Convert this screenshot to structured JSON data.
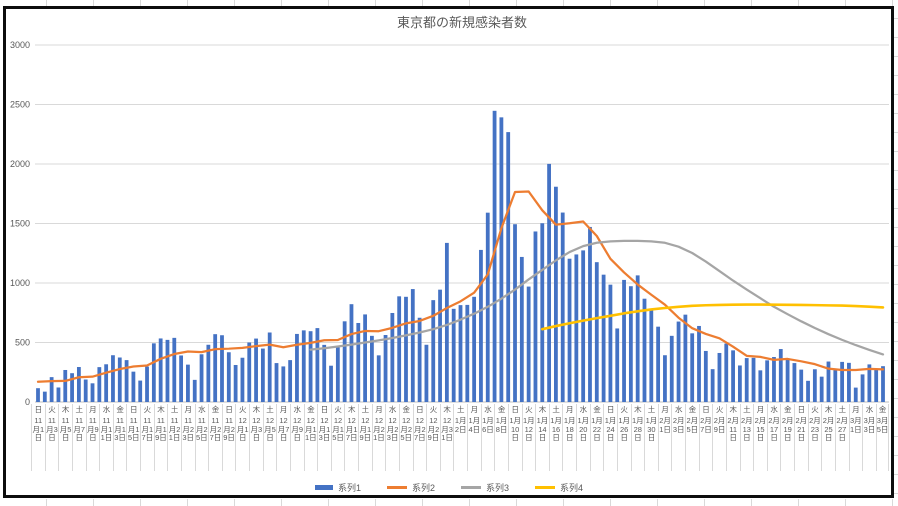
{
  "chart_data": {
    "type": "combo",
    "title": "東京都の新規感染者数",
    "xlabel": "",
    "ylabel": "",
    "ylim": [
      0,
      3000
    ],
    "yticks": [
      0,
      500,
      1000,
      1500,
      2000,
      2500,
      3000
    ],
    "grid": true,
    "legend_position": "bottom",
    "x_label_step_days": 2,
    "x_labels": [
      {
        "w": "日",
        "d": "11月1日"
      },
      {
        "w": "火",
        "d": "11月3日"
      },
      {
        "w": "木",
        "d": "11月5日"
      },
      {
        "w": "土",
        "d": "11月7日"
      },
      {
        "w": "月",
        "d": "11月9日"
      },
      {
        "w": "水",
        "d": "11月11日"
      },
      {
        "w": "金",
        "d": "11月13日"
      },
      {
        "w": "日",
        "d": "11月15日"
      },
      {
        "w": "火",
        "d": "11月17日"
      },
      {
        "w": "木",
        "d": "11月19日"
      },
      {
        "w": "土",
        "d": "11月21日"
      },
      {
        "w": "月",
        "d": "11月23日"
      },
      {
        "w": "水",
        "d": "11月25日"
      },
      {
        "w": "金",
        "d": "11月27日"
      },
      {
        "w": "日",
        "d": "11月29日"
      },
      {
        "w": "火",
        "d": "12月1日"
      },
      {
        "w": "木",
        "d": "12月3日"
      },
      {
        "w": "土",
        "d": "12月5日"
      },
      {
        "w": "月",
        "d": "12月7日"
      },
      {
        "w": "水",
        "d": "12月9日"
      },
      {
        "w": "金",
        "d": "12月11日"
      },
      {
        "w": "日",
        "d": "12月13日"
      },
      {
        "w": "火",
        "d": "12月15日"
      },
      {
        "w": "木",
        "d": "12月17日"
      },
      {
        "w": "土",
        "d": "12月19日"
      },
      {
        "w": "月",
        "d": "12月21日"
      },
      {
        "w": "水",
        "d": "12月23日"
      },
      {
        "w": "金",
        "d": "12月25日"
      },
      {
        "w": "日",
        "d": "12月27日"
      },
      {
        "w": "火",
        "d": "12月29日"
      },
      {
        "w": "木",
        "d": "12月31日"
      },
      {
        "w": "土",
        "d": "1月2日"
      },
      {
        "w": "月",
        "d": "1月4日"
      },
      {
        "w": "水",
        "d": "1月6日"
      },
      {
        "w": "金",
        "d": "1月8日"
      },
      {
        "w": "日",
        "d": "1月10日"
      },
      {
        "w": "火",
        "d": "1月12日"
      },
      {
        "w": "木",
        "d": "1月14日"
      },
      {
        "w": "土",
        "d": "1月16日"
      },
      {
        "w": "月",
        "d": "1月18日"
      },
      {
        "w": "水",
        "d": "1月20日"
      },
      {
        "w": "金",
        "d": "1月22日"
      },
      {
        "w": "日",
        "d": "1月24日"
      },
      {
        "w": "火",
        "d": "1月26日"
      },
      {
        "w": "木",
        "d": "1月28日"
      },
      {
        "w": "土",
        "d": "1月30日"
      },
      {
        "w": "月",
        "d": "2月1日"
      },
      {
        "w": "水",
        "d": "2月3日"
      },
      {
        "w": "金",
        "d": "2月5日"
      },
      {
        "w": "日",
        "d": "2月7日"
      },
      {
        "w": "火",
        "d": "2月9日"
      },
      {
        "w": "木",
        "d": "2月11日"
      },
      {
        "w": "土",
        "d": "2月13日"
      },
      {
        "w": "月",
        "d": "2月15日"
      },
      {
        "w": "水",
        "d": "2月17日"
      },
      {
        "w": "金",
        "d": "2月19日"
      },
      {
        "w": "日",
        "d": "2月21日"
      },
      {
        "w": "火",
        "d": "2月23日"
      },
      {
        "w": "木",
        "d": "2月25日"
      },
      {
        "w": "土",
        "d": "2月27日"
      },
      {
        "w": "月",
        "d": "3月1日"
      },
      {
        "w": "水",
        "d": "3月3日"
      },
      {
        "w": "金",
        "d": "3月5日"
      }
    ],
    "series": [
      {
        "name": "系列1",
        "type": "bar",
        "color": "#4472C4",
        "x_step": 1,
        "values": [
          116,
          87,
          209,
          122,
          269,
          242,
          294,
          189,
          157,
          293,
          317,
          393,
          374,
          352,
          255,
          180,
          298,
          493,
          534,
          522,
          539,
          391,
          314,
          186,
          401,
          481,
          570,
          561,
          418,
          311,
          372,
          500,
          533,
          449,
          584,
          327,
          299,
          352,
          572,
          602,
          595,
          621,
          480,
          305,
          460,
          678,
          822,
          664,
          736,
          556,
          392,
          563,
          748,
          888,
          884,
          949,
          708,
          481,
          856,
          944,
          1337,
          783,
          814,
          816,
          884,
          1278,
          1591,
          2447,
          2392,
          2268,
          1494,
          1219,
          970,
          1433,
          1502,
          2001,
          1809,
          1592,
          1204,
          1240,
          1274,
          1471,
          1175,
          1070,
          986,
          618,
          1026,
          973,
          1064,
          868,
          769,
          633,
          393,
          556,
          676,
          734,
          577,
          639,
          429,
          276,
          412,
          491,
          434,
          307,
          369,
          371,
          266,
          350,
          378,
          445,
          353,
          327,
          272,
          178,
          275,
          213,
          340,
          270,
          337,
          329,
          121,
          232,
          316,
          279,
          301
        ]
      },
      {
        "name": "系列2",
        "type": "line",
        "color": "#ED7D31",
        "x_step": 2,
        "values": [
          170,
          175,
          177,
          208,
          213,
          246,
          277,
          298,
          307,
          363,
          403,
          424,
          419,
          444,
          448,
          455,
          470,
          482,
          460,
          481,
          497,
          519,
          521,
          571,
          597,
          595,
          623,
          661,
          681,
          724,
          790,
          846,
          919,
          1072,
          1460,
          1765,
          1769,
          1611,
          1490,
          1502,
          1517,
          1395,
          1203,
          1089,
          987,
          901,
          818,
          708,
          620,
          572,
          535,
          465,
          388,
          379,
          354,
          362,
          342,
          318,
          280,
          269,
          269,
          278,
          274
        ]
      },
      {
        "name": "系列3",
        "type": "line",
        "color": "#A5A5A5",
        "x_step": 2,
        "values": [
          null,
          null,
          null,
          null,
          null,
          null,
          null,
          null,
          null,
          null,
          null,
          null,
          null,
          null,
          null,
          null,
          null,
          null,
          null,
          null,
          440,
          452,
          466,
          482,
          500,
          518,
          538,
          560,
          584,
          612,
          648,
          692,
          742,
          800,
          868,
          945,
          1030,
          1110,
          1190,
          1260,
          1310,
          1338,
          1350,
          1354,
          1354,
          1350,
          1338,
          1305,
          1252,
          1180,
          1100,
          1020,
          945,
          872,
          800,
          738,
          678,
          622,
          570,
          522,
          478,
          438,
          400
        ]
      },
      {
        "name": "系列4",
        "type": "line",
        "color": "#FFC000",
        "x_step": 2,
        "values": [
          null,
          null,
          null,
          null,
          null,
          null,
          null,
          null,
          null,
          null,
          null,
          null,
          null,
          null,
          null,
          null,
          null,
          null,
          null,
          null,
          null,
          null,
          null,
          null,
          null,
          null,
          null,
          null,
          null,
          null,
          null,
          null,
          null,
          null,
          null,
          null,
          null,
          612,
          638,
          662,
          684,
          705,
          724,
          745,
          762,
          778,
          790,
          800,
          808,
          813,
          816,
          818,
          819,
          819,
          818,
          817,
          816,
          814,
          812,
          810,
          806,
          801,
          795
        ]
      }
    ]
  }
}
